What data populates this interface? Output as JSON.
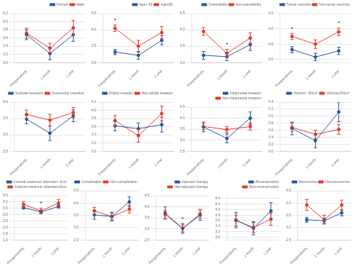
{
  "chart_data": [
    {
      "type": "line",
      "categories": [
        "Preoperatively",
        "1 month",
        "1 year"
      ],
      "series": [
        {
          "name": "Female",
          "color": "#2557a7",
          "values": [
            3.68,
            3.22,
            3.68
          ],
          "errors": [
            0.12,
            0.15,
            0.16
          ]
        },
        {
          "name": "Male",
          "color": "#e8392a",
          "values": [
            3.72,
            3.35,
            3.85
          ],
          "errors": [
            0.12,
            0.12,
            0.18
          ]
        }
      ],
      "marker": "circle",
      "ylim": [
        3.0,
        4.2
      ],
      "yticks": [
        {
          "value": 3,
          "label": "3.0"
        },
        3.2,
        3.4,
        3.6,
        3.8,
        {
          "value": 4,
          "label": "4.0"
        },
        4.2
      ],
      "grid": true,
      "legend": "upper right",
      "annotations": []
    },
    {
      "type": "line",
      "categories": [
        "Preoperatively",
        "1 month",
        "1 year"
      ],
      "series": [
        {
          "name": "Age> 50",
          "color": "#2557a7",
          "values": [
            3.32,
            3.22,
            3.68
          ],
          "errors": [
            0.08,
            0.12,
            0.14
          ]
        },
        {
          "name": "Age≤50",
          "color": "#e8392a",
          "values": [
            4.05,
            3.5,
            3.92
          ],
          "errors": [
            0.1,
            0.18,
            0.18
          ]
        }
      ],
      "marker": "circle",
      "ylim": [
        3.0,
        4.5
      ],
      "yticks": [
        {
          "value": 3,
          "label": "3.0"
        },
        3.5,
        {
          "value": 4,
          "label": "4.0"
        },
        4.5
      ],
      "grid": true,
      "legend": "upper right",
      "annotations": [
        {
          "text": "*",
          "x": "Preoperatively"
        }
      ]
    },
    {
      "type": "line",
      "categories": [
        "Preoperatively",
        "1 month",
        "1 year"
      ],
      "series": [
        {
          "name": "Comorbidity",
          "color": "#2557a7",
          "values": [
            3.22,
            3.18,
            3.55
          ],
          "errors": [
            0.12,
            0.12,
            0.18
          ]
        },
        {
          "name": "Non-comorbidity",
          "color": "#e8392a",
          "values": [
            3.95,
            3.28,
            3.75
          ],
          "errors": [
            0.12,
            0.12,
            0.16
          ]
        }
      ],
      "marker": "circle",
      "ylim": [
        3.0,
        4.5
      ],
      "yticks": [
        {
          "value": 3,
          "label": "3.0"
        },
        3.5,
        {
          "value": 4,
          "label": "4.0"
        },
        4.5
      ],
      "grid": true,
      "legend": "upper right",
      "annotations": [
        {
          "text": "*",
          "x": "1 month"
        }
      ]
    },
    {
      "type": "line",
      "categories": [
        "Preoperatively",
        "1 month",
        "1 year"
      ],
      "series": [
        {
          "name": "Tumor necrosis",
          "color": "#2557a7",
          "values": [
            3.32,
            3.08,
            3.28
          ],
          "errors": [
            0.1,
            0.12,
            0.12
          ]
        },
        {
          "name": "Non-tumor necrosis",
          "color": "#e8392a",
          "values": [
            3.75,
            3.5,
            3.9
          ],
          "errors": [
            0.1,
            0.14,
            0.12
          ]
        }
      ],
      "marker": "circle",
      "ylim": [
        2.9,
        4.5
      ],
      "yticks": [
        {
          "value": 3,
          "label": "3.0"
        },
        3.5,
        {
          "value": 4,
          "label": "4.0"
        },
        4.5
      ],
      "grid": true,
      "legend": "upper right",
      "annotations": [
        {
          "text": "*",
          "x": "Preoperatively"
        },
        {
          "text": "*",
          "x": "1 year"
        }
      ]
    },
    {
      "type": "line",
      "categories": [
        "Preoperatively",
        "1 month",
        "1 year"
      ],
      "series": [
        {
          "name": "Subtotal resection",
          "color": "#2557a7",
          "values": [
            3.48,
            3.05,
            3.58
          ],
          "errors": [
            0.14,
            0.22,
            0.18
          ]
        },
        {
          "name": "Gross-total resection",
          "color": "#e8392a",
          "values": [
            3.62,
            3.45,
            3.68
          ],
          "errors": [
            0.14,
            0.18,
            0.16
          ]
        }
      ],
      "marker": "circle",
      "ylim": [
        2.5,
        4.0
      ],
      "yticks": [
        2.5,
        {
          "value": 3,
          "label": "3.0"
        },
        3.5,
        {
          "value": 4,
          "label": "4.0"
        }
      ],
      "grid": true,
      "legend": "upper right",
      "annotations": []
    },
    {
      "type": "line",
      "categories": [
        "Preoperatively",
        "1 month",
        "1 year"
      ],
      "series": [
        {
          "name": "Orbital invasion",
          "color": "#2557a7",
          "values": [
            3.62,
            3.55,
            3.65
          ],
          "errors": [
            0.12,
            0.14,
            0.18
          ]
        },
        {
          "name": "Non-orbital invasion",
          "color": "#e8392a",
          "values": [
            3.75,
            3.38,
            3.92
          ],
          "errors": [
            0.12,
            0.16,
            0.18
          ]
        }
      ],
      "marker": "circle",
      "ylim": [
        3.0,
        4.2
      ],
      "yticks": [
        {
          "value": 3,
          "label": "3.0"
        },
        3.2,
        3.4,
        3.6,
        3.8,
        {
          "value": 4,
          "label": "4.0"
        },
        4.2
      ],
      "grid": true,
      "legend": "upper right",
      "annotations": []
    },
    {
      "type": "line",
      "categories": [
        "Preoperatively",
        "1 month",
        "1 year"
      ],
      "series": [
        {
          "name": "Intracranial invasion",
          "color": "#2557a7",
          "values": [
            3.6,
            3.08,
            4.0
          ],
          "errors": [
            0.22,
            0.2,
            0.28
          ]
        },
        {
          "name": "Non-intracranial invasion",
          "color": "#e8392a",
          "values": [
            3.62,
            3.48,
            3.62
          ],
          "errors": [
            0.14,
            0.14,
            0.16
          ]
        }
      ],
      "marker": "circle",
      "ylim": [
        2.5,
        4.5
      ],
      "yticks": [
        2.5,
        {
          "value": 3,
          "label": "3.0"
        },
        3.5,
        {
          "value": 4,
          "label": "4.0"
        },
        4.5
      ],
      "grid": true,
      "legend": "upper right",
      "annotations": []
    },
    {
      "type": "line",
      "categories": [
        "Preoperatively",
        "1 month",
        "1 year"
      ],
      "series": [
        {
          "name": "Volume> 30cm³",
          "color": "#2557a7",
          "values": [
            3.65,
            3.3,
            4.12
          ],
          "errors": [
            0.18,
            0.2,
            0.28
          ]
        },
        {
          "name": "Volume≤30cm³",
          "color": "#e8392a",
          "values": [
            3.68,
            3.48,
            3.62
          ],
          "errors": [
            0.12,
            0.12,
            0.14
          ]
        }
      ],
      "marker": "circle",
      "ylim": [
        3.0,
        4.4
      ],
      "yticks": [
        {
          "value": 3,
          "label": "3.0"
        },
        3.2,
        3.4,
        3.6,
        3.8,
        {
          "value": 4,
          "label": "4.0"
        },
        4.2,
        4.4
      ],
      "grid": true,
      "legend": "upper right",
      "annotations": []
    },
    {
      "type": "line",
      "categories": [
        "Preoperatively",
        "1 month",
        "1 year"
      ],
      "series": [
        {
          "name": "Coronal maximum diameter> 3cm",
          "color": "#2557a7",
          "values": [
            3.55,
            3.22,
            3.65
          ],
          "errors": [
            0.1,
            0.12,
            0.12
          ]
        },
        {
          "name": "Coronal maximum diameter≤3cm",
          "color": "#e8392a",
          "values": [
            3.82,
            3.3,
            3.92
          ],
          "errors": [
            0.22,
            0.22,
            0.28
          ]
        }
      ],
      "marker": "circle",
      "ylim": [
        1.0,
        4.5
      ],
      "yticks": [
        {
          "value": 1,
          "label": "1.0"
        },
        1.5,
        {
          "value": 2,
          "label": "2.0"
        },
        2.5,
        {
          "value": 3,
          "label": "3.0"
        },
        3.5,
        {
          "value": 4,
          "label": "4.0"
        },
        4.5
      ],
      "grid": true,
      "legend": "upper right",
      "annotations": [
        {
          "text": "*",
          "x": "1 month"
        }
      ]
    },
    {
      "type": "line",
      "categories": [
        "Preoperatively",
        "1 month",
        "1 year"
      ],
      "series": [
        {
          "name": "Complication",
          "color": "#2557a7",
          "values": [
            3.52,
            3.45,
            4.05
          ],
          "errors": [
            0.18,
            0.18,
            0.2
          ]
        },
        {
          "name": "Non-complication",
          "color": "#e8392a",
          "values": [
            3.68,
            3.45,
            3.75
          ],
          "errors": [
            0.14,
            0.14,
            0.16
          ]
        }
      ],
      "marker": "circle",
      "ylim": [
        2.5,
        4.5
      ],
      "yticks": [
        2.5,
        {
          "value": 3,
          "label": "3.0"
        },
        3.5,
        {
          "value": 4,
          "label": "4.0"
        },
        4.5
      ],
      "grid": true,
      "legend": "upper right",
      "annotations": []
    },
    {
      "type": "line",
      "categories": [
        "Preoperatively",
        "1 month",
        "1 year"
      ],
      "series": [
        {
          "name": "Adjuvant therapy",
          "color": "#2557a7",
          "values": [
            3.72,
            3.02,
            3.62
          ],
          "errors": [
            0.28,
            0.22,
            0.24
          ]
        },
        {
          "name": "Non-adjuvant therapy",
          "color": "#e8392a",
          "values": [
            3.65,
            3.02,
            3.68
          ],
          "errors": [
            0.18,
            0.16,
            0.2
          ]
        }
      ],
      "marker": "circle",
      "ylim": [
        2.5,
        4.5
      ],
      "yticks": [
        2.5,
        {
          "value": 3,
          "label": "3.0"
        },
        3.5,
        {
          "value": 4,
          "label": "4.0"
        },
        4.5
      ],
      "grid": true,
      "legend": "upper right",
      "annotations": [
        {
          "text": "*",
          "x": "1 month"
        }
      ]
    },
    {
      "type": "line",
      "categories": [
        "Preoperatively",
        "1 month",
        "1 year"
      ],
      "series": [
        {
          "name": "Reconstruction",
          "color": "#2557a7",
          "values": [
            3.62,
            3.32,
            3.95
          ],
          "errors": [
            0.28,
            0.24,
            0.3
          ]
        },
        {
          "name": "Non-reconstruction",
          "color": "#e8392a",
          "values": [
            3.6,
            3.35,
            3.65
          ],
          "errors": [
            0.2,
            0.18,
            0.22
          ]
        }
      ],
      "marker": "circle",
      "ylim": [
        2.9,
        4.5
      ],
      "yticks": [
        {
          "value": 3,
          "label": "3.0"
        },
        3.2,
        3.4,
        3.6,
        3.8,
        {
          "value": 4,
          "label": "4.0"
        },
        4.2,
        4.4
      ],
      "grid": true,
      "legend": "upper right",
      "annotations": []
    },
    {
      "type": "line",
      "categories": [
        "Preoperatively",
        "1 month",
        "1 year"
      ],
      "series": [
        {
          "name": "Recurrence",
          "color": "#2557a7",
          "values": [
            3.32,
            3.28,
            3.6
          ],
          "errors": [
            0.1,
            0.1,
            0.12
          ]
        },
        {
          "name": "Non-recurrence",
          "color": "#e8392a",
          "values": [
            3.92,
            3.32,
            3.92
          ],
          "errors": [
            0.22,
            0.18,
            0.2
          ]
        }
      ],
      "marker": "circle",
      "ylim": [
        2.5,
        4.5
      ],
      "yticks": [
        2.5,
        {
          "value": 3,
          "label": "3.0"
        },
        3.5,
        {
          "value": 4,
          "label": "4.0"
        },
        4.5
      ],
      "grid": true,
      "legend": "upper right",
      "annotations": []
    }
  ]
}
